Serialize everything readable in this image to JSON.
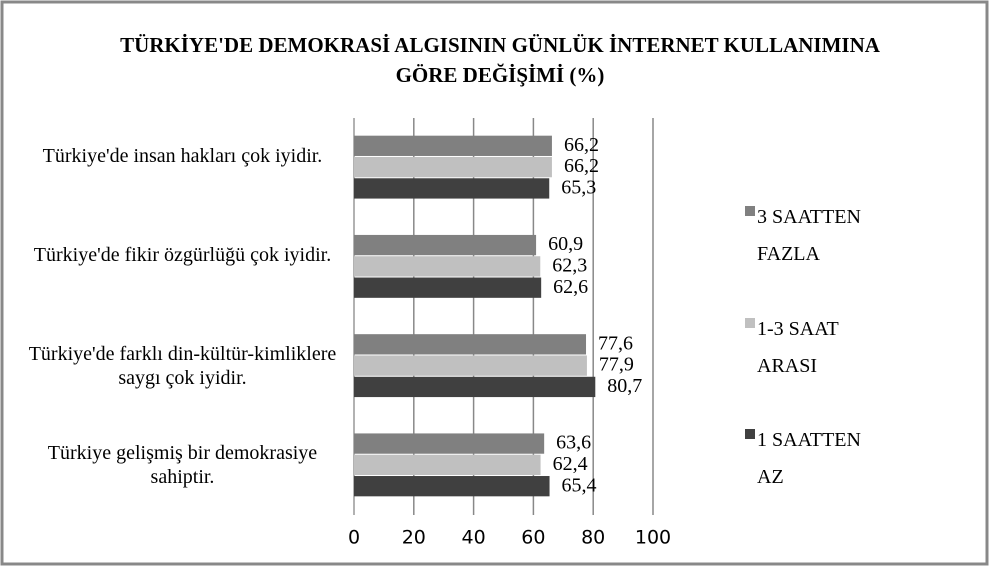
{
  "chart_data": {
    "type": "barh",
    "title": "TÜRKİYE'DE DEMOKRASİ ALGISININ GÜNLÜK İNTERNET KULLANIMINA GÖRE DEĞİŞİMİ (%)",
    "categories": [
      "Türkiye'de insan hakları çok iyidir.",
      "Türkiye'de fikir özgürlüğü çok iyidir.",
      "Türkiye'de farklı din-kültür-kimliklere saygı çok iyidir.",
      "Türkiye gelişmiş bir demokrasiye sahiptir."
    ],
    "series": [
      {
        "name": "3 SAATTEN FAZLA",
        "color": "#808080",
        "values": [
          66.2,
          60.9,
          77.6,
          63.6
        ],
        "value_labels": [
          "66,2",
          "60,9",
          "77,6",
          "63,6"
        ]
      },
      {
        "name": "1-3 SAAT ARASI",
        "color": "#c0c0c0",
        "values": [
          66.2,
          62.3,
          77.9,
          62.4
        ],
        "value_labels": [
          "66,2",
          "62,3",
          "77,9",
          "62,4"
        ]
      },
      {
        "name": "1 SAATTEN AZ",
        "color": "#404040",
        "values": [
          65.3,
          62.6,
          80.7,
          65.4
        ],
        "value_labels": [
          "65,3",
          "62,6",
          "80,7",
          "65,4"
        ]
      }
    ],
    "xlim": [
      0,
      100
    ],
    "xticks": [
      0,
      20,
      40,
      60,
      80,
      100
    ],
    "grid": true,
    "legend": "right"
  }
}
